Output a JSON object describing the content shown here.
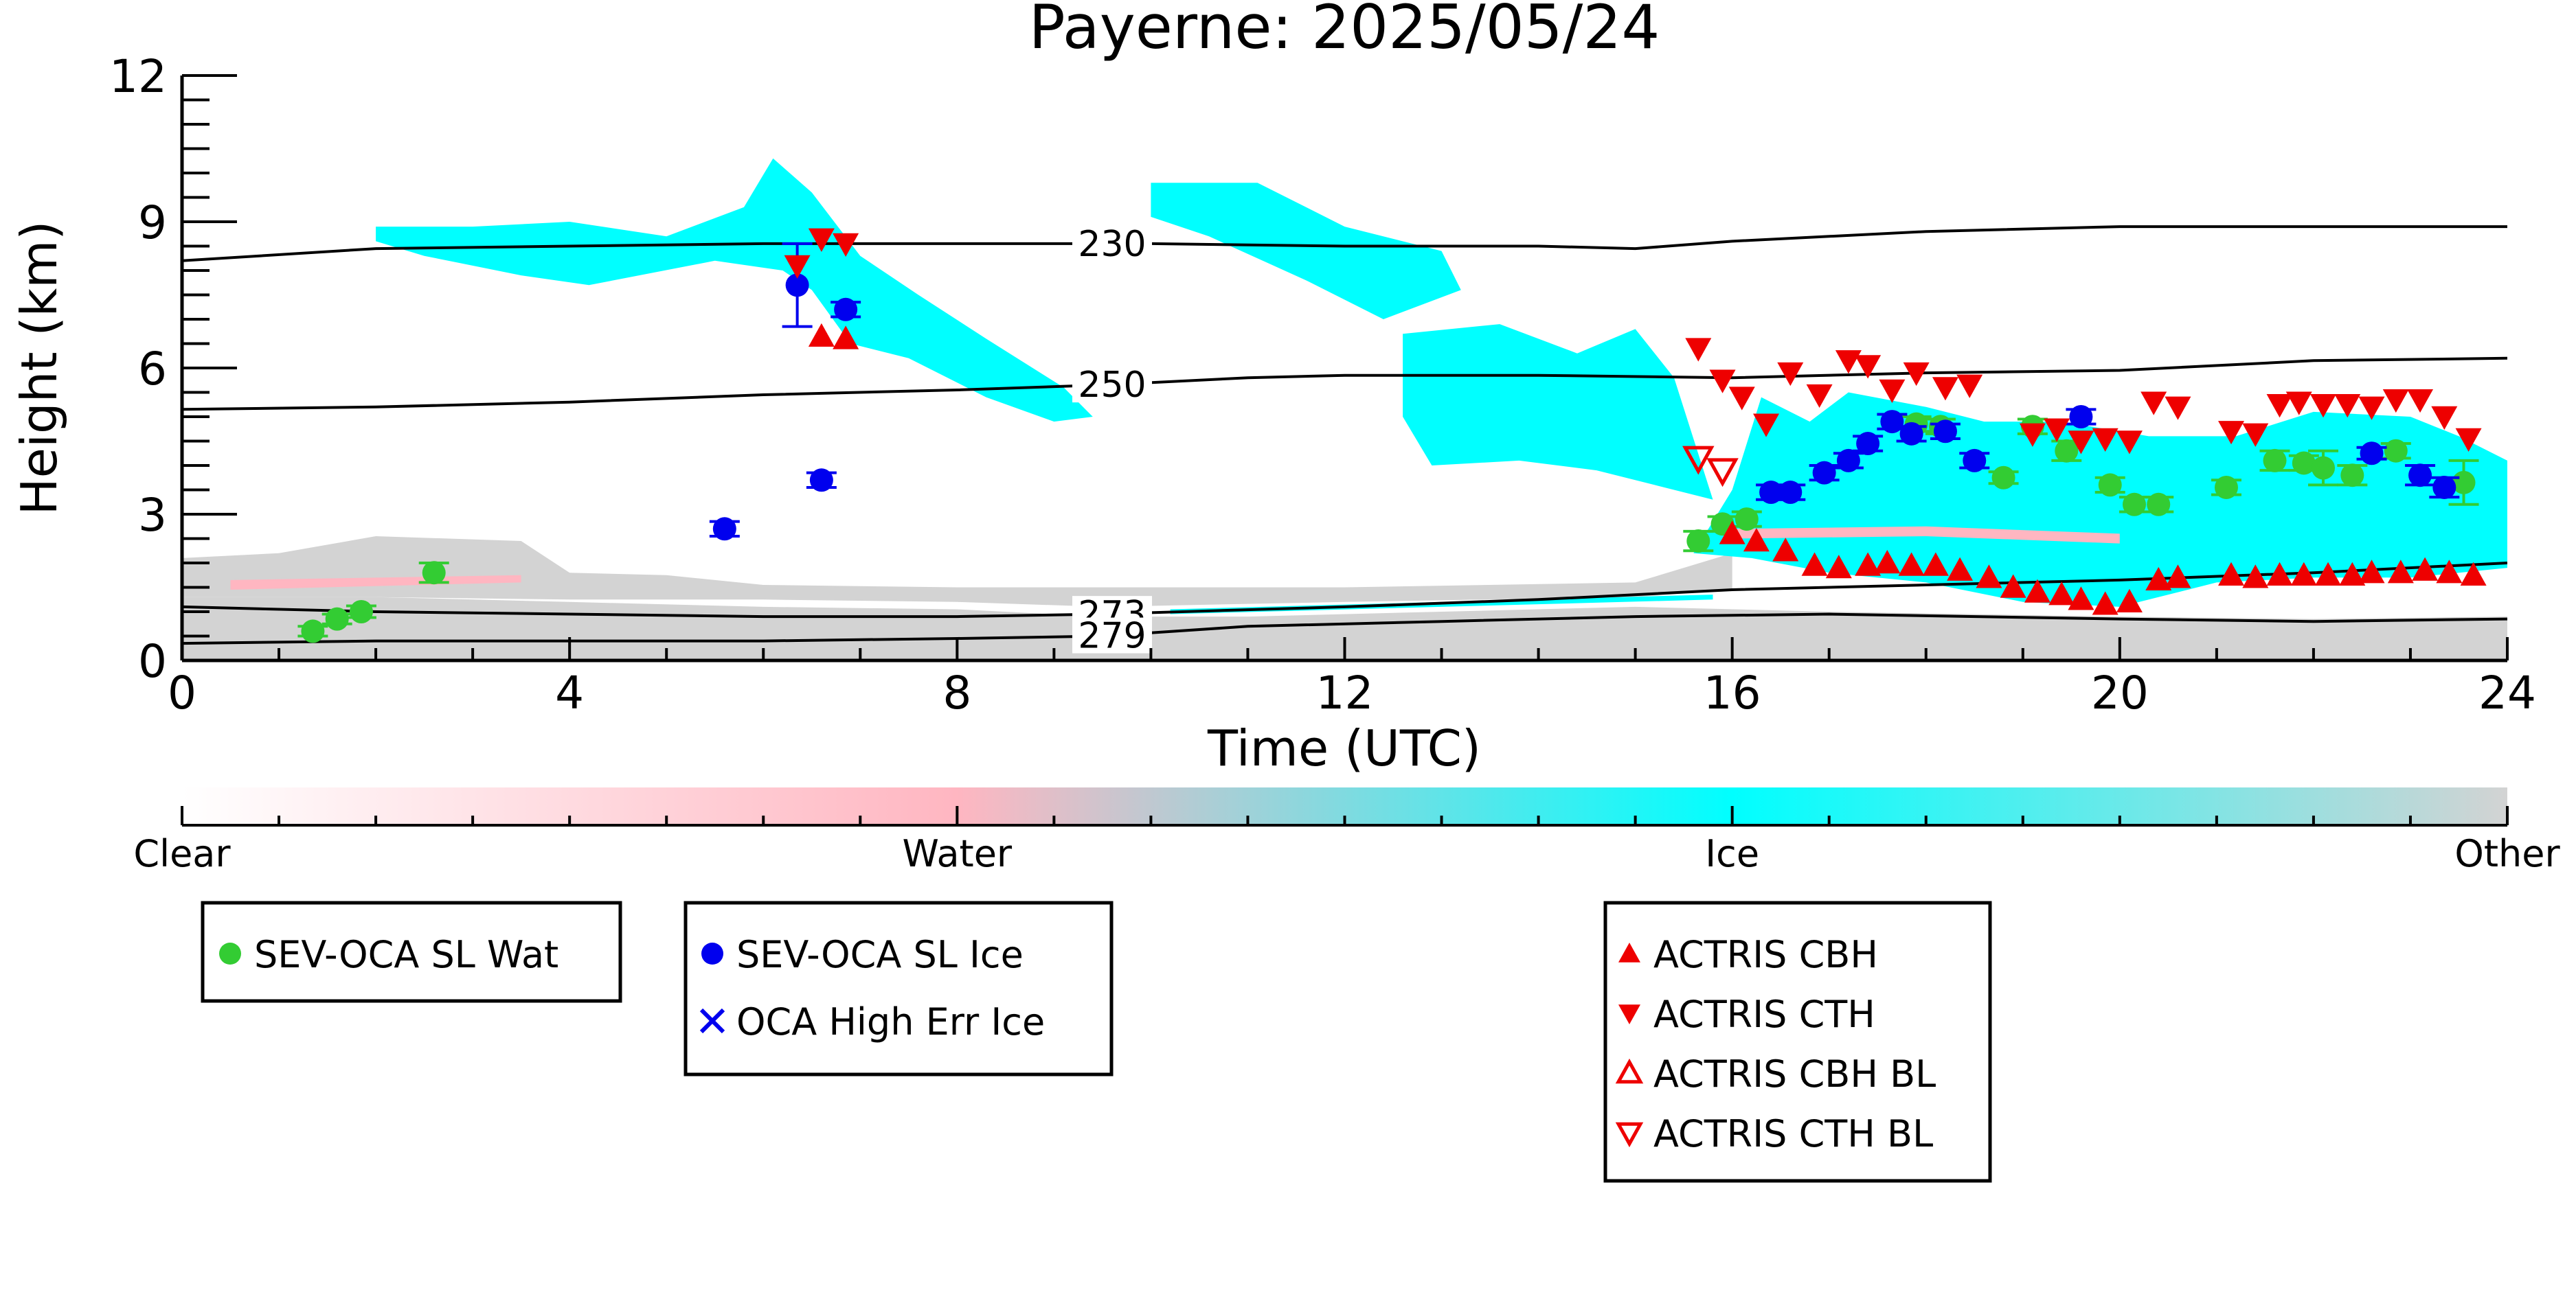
{
  "chart_data": {
    "type": "scatter",
    "title": "Payerne: 2025/05/24",
    "xlabel": "Time (UTC)",
    "ylabel": "Height (km)",
    "xlim": [
      0,
      24
    ],
    "ylim": [
      0,
      12
    ],
    "xticks": [
      0,
      4,
      8,
      12,
      16,
      20,
      24
    ],
    "yticks": [
      0,
      3,
      6,
      9,
      12
    ],
    "isotherms": [
      {
        "label": "230",
        "label_x": 9.6,
        "points": [
          [
            0,
            8.2
          ],
          [
            2,
            8.45
          ],
          [
            4,
            8.5
          ],
          [
            6,
            8.55
          ],
          [
            8,
            8.55
          ],
          [
            10,
            8.55
          ],
          [
            12,
            8.5
          ],
          [
            14,
            8.5
          ],
          [
            15,
            8.45
          ],
          [
            16,
            8.6
          ],
          [
            18,
            8.8
          ],
          [
            20,
            8.9
          ],
          [
            22,
            8.9
          ],
          [
            24,
            8.9
          ]
        ]
      },
      {
        "label": "250",
        "label_x": 9.6,
        "points": [
          [
            0,
            5.15
          ],
          [
            2,
            5.2
          ],
          [
            4,
            5.3
          ],
          [
            6,
            5.45
          ],
          [
            8,
            5.55
          ],
          [
            9.5,
            5.65
          ],
          [
            11,
            5.8
          ],
          [
            12,
            5.85
          ],
          [
            14,
            5.85
          ],
          [
            16,
            5.8
          ],
          [
            18,
            5.9
          ],
          [
            20,
            5.95
          ],
          [
            22,
            6.15
          ],
          [
            24,
            6.2
          ]
        ]
      },
      {
        "label": "273",
        "label_x": 9.6,
        "points": [
          [
            0,
            1.1
          ],
          [
            2,
            1.0
          ],
          [
            4,
            0.95
          ],
          [
            6,
            0.9
          ],
          [
            8,
            0.9
          ],
          [
            9.5,
            0.95
          ],
          [
            12,
            1.1
          ],
          [
            14,
            1.25
          ],
          [
            16,
            1.45
          ],
          [
            18,
            1.55
          ],
          [
            20,
            1.65
          ],
          [
            22,
            1.8
          ],
          [
            24,
            2.0
          ]
        ]
      },
      {
        "label": "279",
        "label_x": 9.6,
        "points": [
          [
            0,
            0.35
          ],
          [
            2,
            0.4
          ],
          [
            4,
            0.4
          ],
          [
            6,
            0.4
          ],
          [
            8,
            0.45
          ],
          [
            9.5,
            0.5
          ],
          [
            11,
            0.7
          ],
          [
            13,
            0.8
          ],
          [
            15,
            0.9
          ],
          [
            17,
            0.95
          ],
          [
            20,
            0.85
          ],
          [
            22,
            0.8
          ],
          [
            24,
            0.85
          ]
        ]
      }
    ],
    "series": [
      {
        "name": "SEV-OCA SL Wat",
        "marker": "circle",
        "color": "#33cc33",
        "x": [
          1.35,
          1.6,
          1.85,
          2.6,
          15.65,
          15.9,
          16.15,
          17.9,
          18.15,
          18.8,
          19.1,
          19.45,
          19.9,
          20.15,
          20.4,
          21.1,
          21.6,
          21.9,
          22.1,
          22.4,
          22.85,
          23.55
        ],
        "y": [
          0.6,
          0.85,
          1.0,
          1.8,
          2.45,
          2.8,
          2.9,
          4.85,
          4.8,
          3.75,
          4.8,
          4.3,
          3.6,
          3.2,
          3.2,
          3.55,
          4.1,
          4.05,
          3.95,
          3.8,
          4.3,
          3.65
        ],
        "err": [
          0.1,
          0.1,
          0.12,
          0.2,
          0.2,
          0.15,
          0.15,
          0.15,
          0.15,
          0.12,
          0.15,
          0.2,
          0.15,
          0.15,
          0.15,
          0.15,
          0.2,
          0.15,
          0.35,
          0.2,
          0.15,
          0.45
        ]
      },
      {
        "name": "SEV-OCA SL Ice",
        "marker": "circle",
        "color": "#0000ee",
        "x": [
          5.6,
          6.35,
          6.6,
          6.85,
          16.4,
          16.6,
          16.95,
          17.2,
          17.4,
          17.65,
          17.85,
          18.2,
          18.5,
          19.6,
          22.6,
          23.1,
          23.35
        ],
        "y": [
          2.7,
          7.7,
          3.7,
          7.2,
          3.45,
          3.45,
          3.85,
          4.1,
          4.45,
          4.9,
          4.65,
          4.7,
          4.1,
          5.0,
          4.25,
          3.8,
          3.55
        ],
        "err": [
          0.15,
          0.85,
          0.15,
          0.15,
          0.15,
          0.15,
          0.15,
          0.15,
          0.15,
          0.15,
          0.15,
          0.15,
          0.15,
          0.15,
          0.12,
          0.2,
          0.2
        ]
      },
      {
        "name": "OCA High Err Ice",
        "marker": "x",
        "color": "#0000ee",
        "x": [],
        "y": []
      },
      {
        "name": "ACTRIS CBH",
        "marker": "triangle-up",
        "color": "#ee0000",
        "x": [
          6.6,
          6.85,
          16.0,
          16.25,
          16.55,
          16.85,
          17.1,
          17.4,
          17.6,
          17.85,
          18.1,
          18.35,
          18.65,
          18.9,
          19.15,
          19.4,
          19.6,
          19.85,
          20.1,
          20.4,
          20.6,
          21.15,
          21.4,
          21.65,
          21.9,
          22.15,
          22.4,
          22.6,
          22.9,
          23.15,
          23.4,
          23.65
        ],
        "y": [
          6.65,
          6.6,
          2.6,
          2.45,
          2.25,
          1.95,
          1.9,
          1.95,
          2.0,
          1.95,
          1.95,
          1.85,
          1.7,
          1.5,
          1.4,
          1.35,
          1.25,
          1.15,
          1.2,
          1.65,
          1.7,
          1.75,
          1.7,
          1.75,
          1.75,
          1.75,
          1.75,
          1.8,
          1.8,
          1.85,
          1.8,
          1.75
        ]
      },
      {
        "name": "ACTRIS CTH",
        "marker": "triangle-down",
        "color": "#ee0000",
        "x": [
          6.35,
          6.6,
          6.85,
          15.65,
          15.9,
          16.1,
          16.35,
          16.6,
          16.9,
          17.2,
          17.4,
          17.65,
          17.9,
          18.2,
          18.45,
          19.1,
          19.35,
          19.6,
          19.85,
          20.1,
          20.35,
          20.6,
          21.15,
          21.4,
          21.65,
          21.85,
          22.1,
          22.35,
          22.6,
          22.85,
          23.1,
          23.35,
          23.6
        ],
        "y": [
          8.1,
          8.65,
          8.55,
          6.4,
          5.75,
          5.4,
          4.85,
          5.9,
          5.45,
          6.15,
          6.05,
          5.55,
          5.9,
          5.6,
          5.65,
          4.65,
          4.75,
          4.5,
          4.55,
          4.5,
          5.3,
          5.2,
          4.7,
          4.65,
          5.25,
          5.3,
          5.25,
          5.25,
          5.2,
          5.35,
          5.35,
          5.0,
          4.55
        ]
      },
      {
        "name": "ACTRIS CBH BL",
        "marker": "triangle-up-open",
        "color": "#ee0000",
        "x": [],
        "y": []
      },
      {
        "name": "ACTRIS CTH BL",
        "marker": "triangle-down-open",
        "color": "#ee0000",
        "x": [
          15.65,
          15.9
        ],
        "y": [
          4.15,
          3.9
        ]
      }
    ],
    "classification_field": {
      "colors": {
        "clear": "#ffffff",
        "water": "#ffb6c1",
        "ice": "#00ffff",
        "other": "#d3d3d3"
      },
      "regions": [
        {
          "class": "other",
          "polygon": [
            [
              0,
              0
            ],
            [
              24,
              0
            ],
            [
              24,
              0.9
            ],
            [
              22,
              0.85
            ],
            [
              20,
              0.9
            ],
            [
              17,
              1.0
            ],
            [
              15,
              1.1
            ],
            [
              13,
              1.0
            ],
            [
              11,
              0.9
            ],
            [
              9.5,
              0.9
            ],
            [
              8,
              1.05
            ],
            [
              6,
              1.1
            ],
            [
              4,
              1.2
            ],
            [
              2,
              1.3
            ],
            [
              0,
              1.3
            ]
          ]
        },
        {
          "class": "other",
          "polygon": [
            [
              0,
              1.3
            ],
            [
              2,
              1.3
            ],
            [
              4,
              1.25
            ],
            [
              6,
              1.25
            ],
            [
              8,
              1.2
            ],
            [
              9.5,
              1.1
            ],
            [
              12,
              1.2
            ],
            [
              15,
              1.3
            ],
            [
              16,
              1.45
            ],
            [
              16,
              2.2
            ],
            [
              15,
              1.6
            ],
            [
              12,
              1.5
            ],
            [
              9.5,
              1.5
            ],
            [
              8,
              1.5
            ],
            [
              6,
              1.55
            ],
            [
              5,
              1.75
            ],
            [
              4,
              1.8
            ],
            [
              3.5,
              2.45
            ],
            [
              2,
              2.55
            ],
            [
              1,
              2.2
            ],
            [
              0,
              2.1
            ]
          ]
        },
        {
          "class": "water",
          "polygon": [
            [
              0.5,
              1.45
            ],
            [
              3.5,
              1.6
            ],
            [
              3.5,
              1.75
            ],
            [
              0.5,
              1.65
            ]
          ]
        },
        {
          "class": "ice",
          "polygon": [
            [
              2,
              8.9
            ],
            [
              3,
              8.9
            ],
            [
              4,
              9.0
            ],
            [
              5,
              8.7
            ],
            [
              5.8,
              9.3
            ],
            [
              6.1,
              10.3
            ],
            [
              6.5,
              9.6
            ],
            [
              7,
              8.3
            ],
            [
              7.6,
              7.5
            ],
            [
              8.3,
              6.6
            ],
            [
              9.1,
              5.6
            ],
            [
              9.4,
              5.0
            ],
            [
              9.0,
              4.9
            ],
            [
              8.3,
              5.4
            ],
            [
              7.5,
              6.2
            ],
            [
              6.9,
              6.5
            ],
            [
              6.5,
              7.6
            ],
            [
              6.2,
              8.0
            ],
            [
              5.5,
              8.2
            ],
            [
              4.2,
              7.7
            ],
            [
              3.5,
              7.9
            ],
            [
              2.5,
              8.3
            ],
            [
              2.0,
              8.6
            ]
          ]
        },
        {
          "class": "ice",
          "polygon": [
            [
              10.0,
              9.8
            ],
            [
              11.1,
              9.8
            ],
            [
              12.0,
              8.9
            ],
            [
              13.0,
              8.4
            ],
            [
              13.2,
              7.6
            ],
            [
              12.4,
              7.0
            ],
            [
              11.6,
              7.8
            ],
            [
              10.6,
              8.7
            ],
            [
              10.0,
              9.1
            ]
          ]
        },
        {
          "class": "ice",
          "polygon": [
            [
              12.6,
              6.7
            ],
            [
              13.6,
              6.9
            ],
            [
              14.4,
              6.3
            ],
            [
              15.0,
              6.8
            ],
            [
              15.4,
              5.8
            ],
            [
              15.8,
              3.3
            ],
            [
              15.2,
              3.6
            ],
            [
              14.6,
              3.9
            ],
            [
              13.8,
              4.1
            ],
            [
              12.9,
              4.0
            ],
            [
              12.6,
              5.0
            ]
          ]
        },
        {
          "class": "ice",
          "polygon": [
            [
              15.6,
              2.2
            ],
            [
              16.0,
              3.5
            ],
            [
              16.3,
              5.4
            ],
            [
              16.8,
              4.9
            ],
            [
              17.2,
              5.5
            ],
            [
              18.0,
              5.2
            ],
            [
              18.6,
              4.9
            ],
            [
              19.4,
              4.9
            ],
            [
              20.3,
              4.6
            ],
            [
              21.2,
              4.6
            ],
            [
              22.0,
              5.1
            ],
            [
              23.0,
              5.0
            ],
            [
              23.5,
              4.6
            ],
            [
              24.0,
              4.1
            ],
            [
              24.0,
              1.9
            ],
            [
              23.0,
              1.7
            ],
            [
              22.0,
              1.7
            ],
            [
              21.0,
              1.6
            ],
            [
              20.0,
              1.1
            ],
            [
              19.0,
              1.2
            ],
            [
              18.0,
              1.6
            ],
            [
              17.0,
              1.8
            ],
            [
              16.2,
              2.1
            ]
          ]
        },
        {
          "class": "water",
          "polygon": [
            [
              16.0,
              2.5
            ],
            [
              18.0,
              2.55
            ],
            [
              20.0,
              2.4
            ],
            [
              20.0,
              2.6
            ],
            [
              18.0,
              2.75
            ],
            [
              16.0,
              2.7
            ]
          ]
        },
        {
          "class": "ice",
          "polygon": [
            [
              10.2,
              0.95
            ],
            [
              15.8,
              1.25
            ],
            [
              15.8,
              1.35
            ],
            [
              10.2,
              1.05
            ]
          ]
        }
      ]
    },
    "colorbar": {
      "labels": [
        "Clear",
        "Water",
        "Ice",
        "Other"
      ],
      "positions": [
        0,
        1,
        2,
        3
      ],
      "stops": [
        "#ffffff",
        "#ffb6c1",
        "#00ffff",
        "#d3d3d3"
      ]
    }
  },
  "legend": {
    "groups": [
      [
        "SEV-OCA SL Wat"
      ],
      [
        "SEV-OCA SL Ice",
        "OCA High Err Ice"
      ],
      [
        "ACTRIS CBH",
        "ACTRIS CTH",
        "ACTRIS CBH BL",
        "ACTRIS CTH BL"
      ]
    ]
  }
}
